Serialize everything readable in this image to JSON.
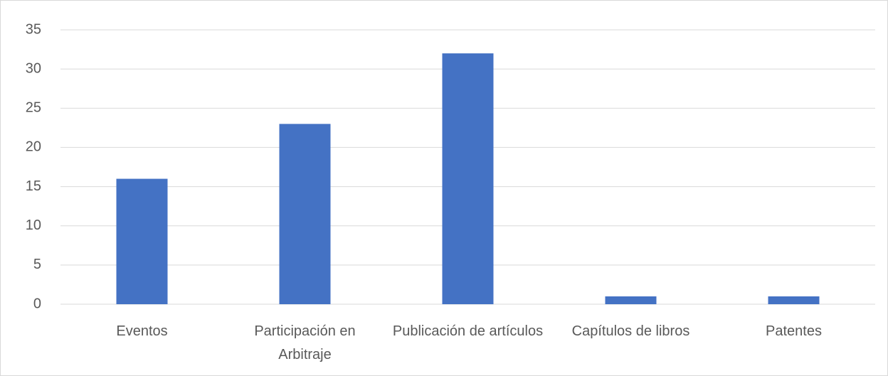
{
  "chart_data": {
    "type": "bar",
    "categories": [
      "Eventos",
      "Participación en Arbitraje",
      "Publicación de artículos",
      "Capítulos de libros",
      "Patentes"
    ],
    "values": [
      16,
      23,
      32,
      1,
      1
    ],
    "color": "#4472c4",
    "ylim": [
      0,
      35
    ],
    "yticks": [
      0,
      5,
      10,
      15,
      20,
      25,
      30,
      35
    ],
    "grid": true
  }
}
